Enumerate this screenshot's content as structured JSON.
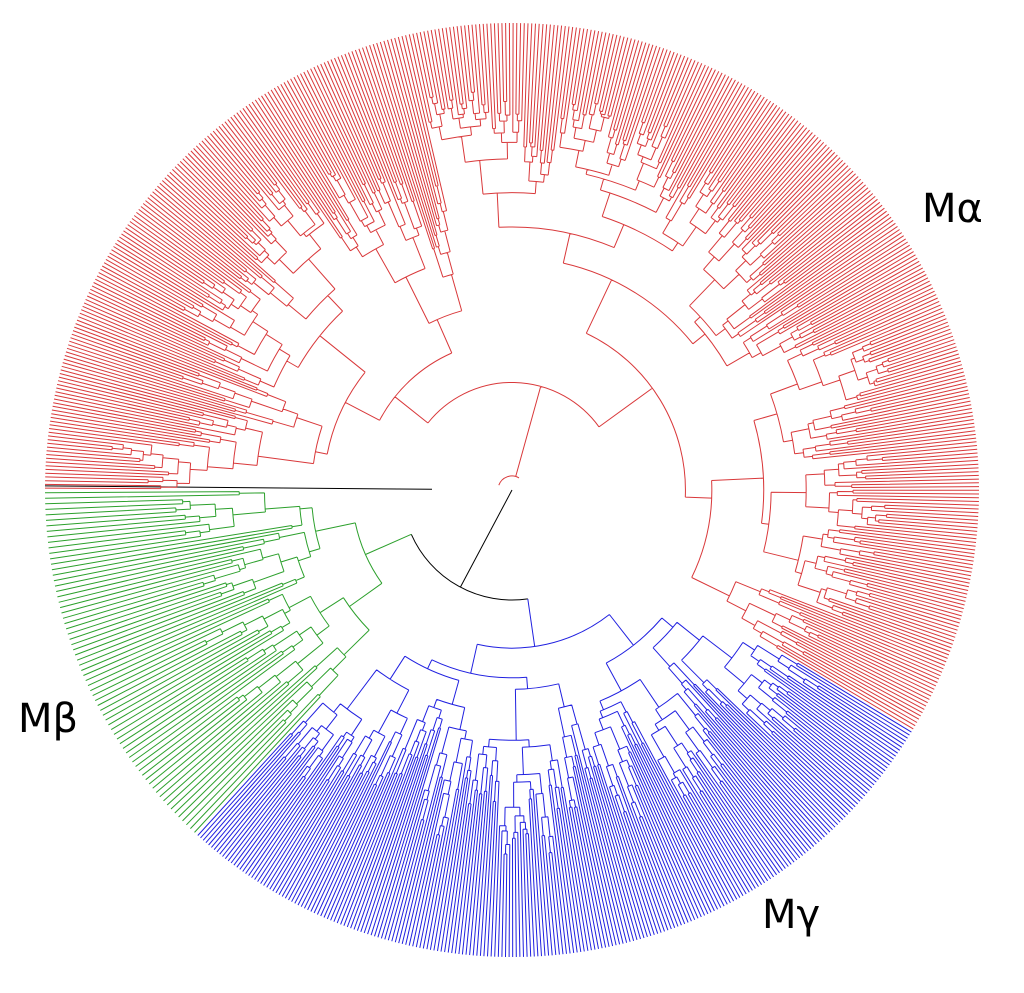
{
  "clades": [
    {
      "label": "Mα",
      "color": "#d9383a"
    },
    {
      "label": "Mβ",
      "color": "#2ca02c"
    },
    {
      "label": "Mγ",
      "color": "#2020e0"
    }
  ]
}
